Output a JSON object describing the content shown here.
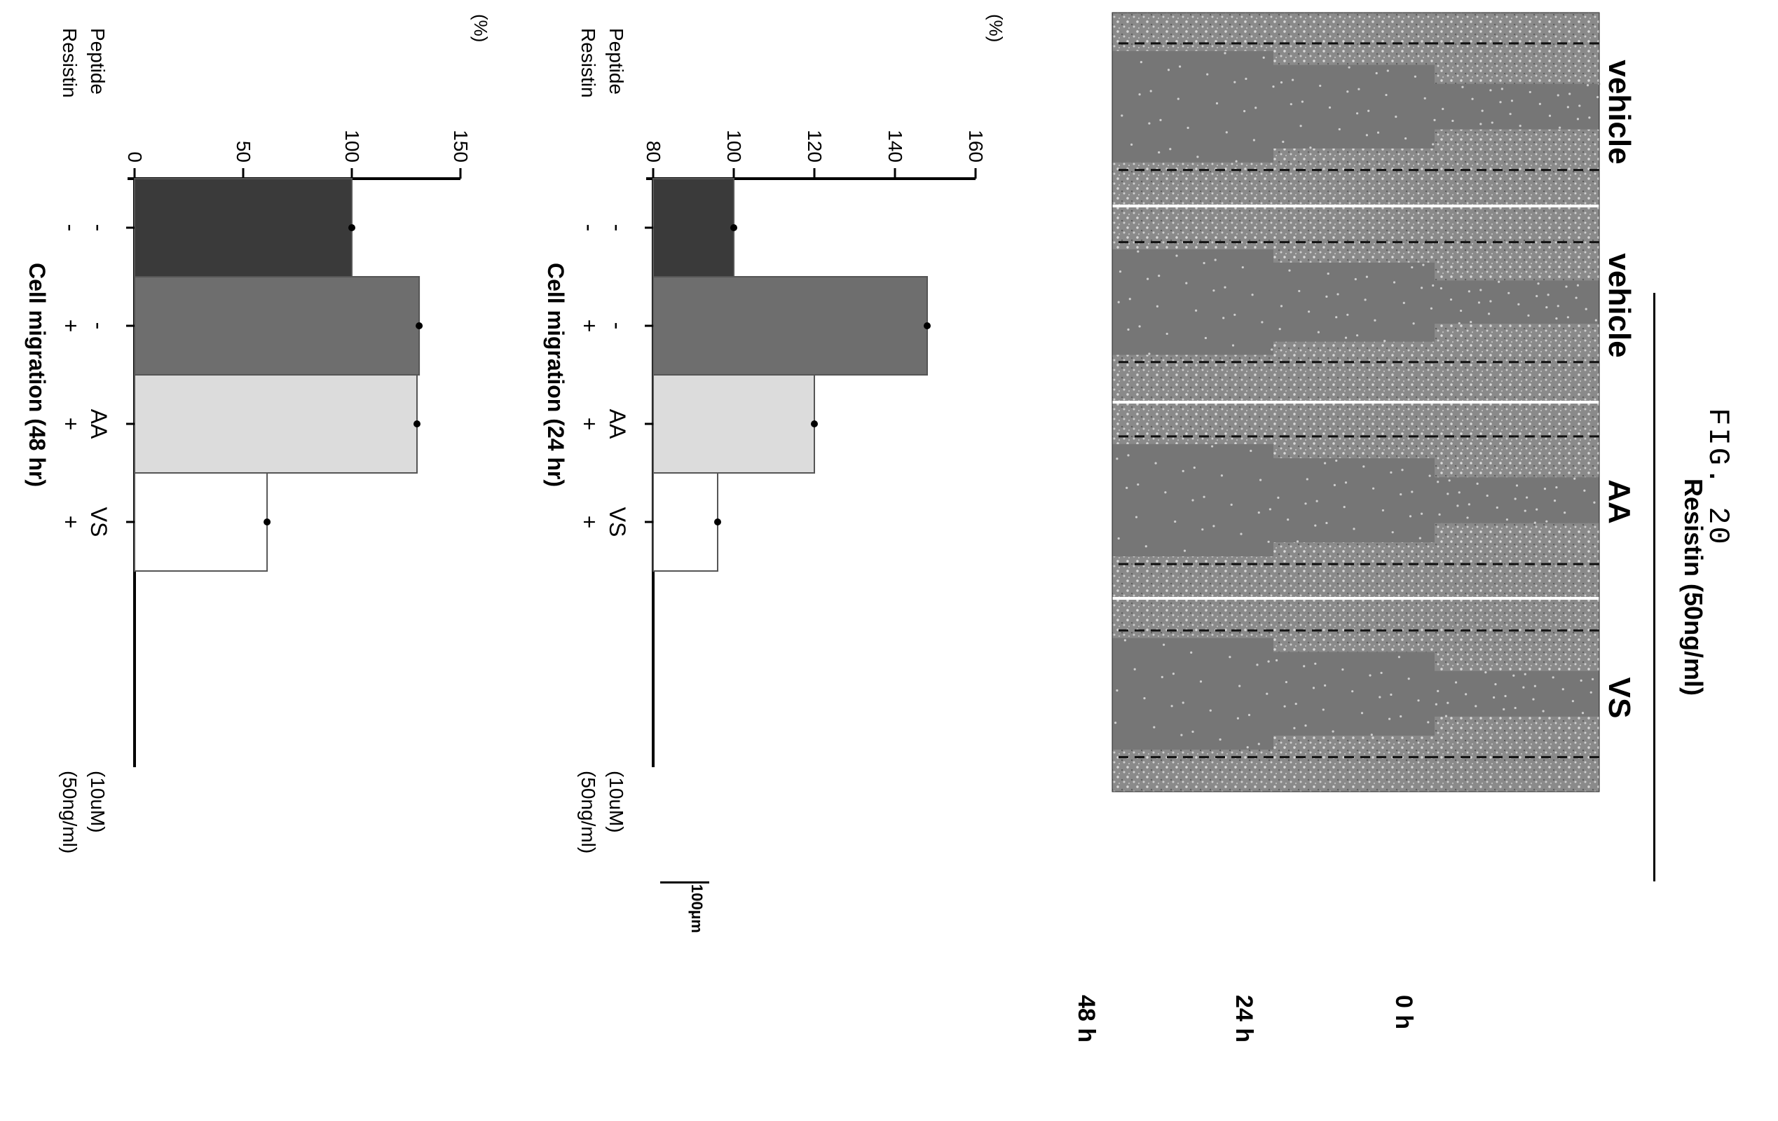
{
  "figure": {
    "label": "FIG. 20",
    "group_label": "Resistin (50ng/ml)",
    "columns": [
      "vehicle",
      "vehicle",
      "AA",
      "VS"
    ],
    "rows": [
      "0 h",
      "24 h",
      "48 h"
    ],
    "scale_bar": "100μm"
  },
  "chart_data": [
    {
      "type": "bar",
      "title": "Cell migration (24 hr)",
      "ylabel": "(%)",
      "ylim": [
        80,
        160
      ],
      "yticks": [
        "80",
        "100",
        "120",
        "140",
        "160"
      ],
      "values": [
        100,
        148,
        120,
        96
      ],
      "colors": [
        "#3a3a3a",
        "#6e6e6e",
        "#dcdcdc",
        "#ffffff"
      ],
      "row_labels": [
        "Peptide",
        "Resistin"
      ],
      "row_units": [
        "(10uM)",
        "(50ng/ml)"
      ],
      "peptide": [
        "-",
        "-",
        "AA",
        "VS"
      ],
      "resistin": [
        "-",
        "+",
        "+",
        "+"
      ]
    },
    {
      "type": "bar",
      "title": "Cell migration (48 hr)",
      "ylabel": "(%)",
      "ylim": [
        0,
        150
      ],
      "yticks": [
        "0",
        "50",
        "100",
        "150"
      ],
      "values": [
        100,
        131,
        130,
        61
      ],
      "colors": [
        "#3a3a3a",
        "#6e6e6e",
        "#dcdcdc",
        "#ffffff"
      ],
      "row_labels": [
        "Peptide",
        "Resistin"
      ],
      "row_units": [
        "(10uM)",
        "(50ng/ml)"
      ],
      "peptide": [
        "-",
        "-",
        "AA",
        "VS"
      ],
      "resistin": [
        "-",
        "+",
        "+",
        "+"
      ]
    }
  ]
}
